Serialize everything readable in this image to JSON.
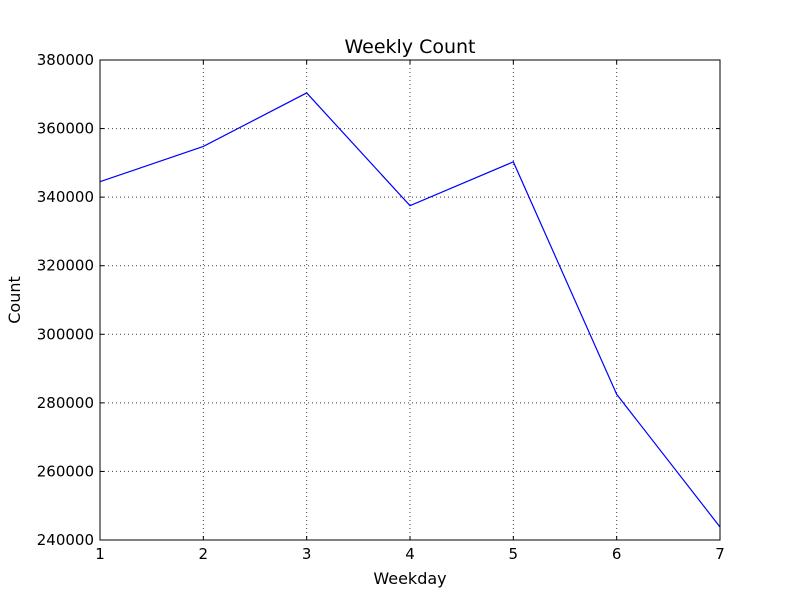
{
  "chart_data": {
    "type": "line",
    "title": "Weekly Count",
    "xlabel": "Weekday",
    "ylabel": "Count",
    "x": [
      1,
      2,
      3,
      4,
      5,
      6,
      7
    ],
    "series": [
      {
        "values": [
          344500,
          354800,
          370400,
          337500,
          350300,
          282500,
          243800
        ],
        "color": "#0000ff"
      }
    ],
    "xlim": [
      1,
      7
    ],
    "ylim": [
      240000,
      380000
    ],
    "xticks": [
      1,
      2,
      3,
      4,
      5,
      6,
      7
    ],
    "yticks": [
      240000,
      260000,
      280000,
      300000,
      320000,
      340000,
      360000,
      380000
    ],
    "xtick_labels": [
      "1",
      "2",
      "3",
      "4",
      "5",
      "6",
      "7"
    ],
    "ytick_labels": [
      "240000",
      "260000",
      "280000",
      "300000",
      "320000",
      "340000",
      "360000",
      "380000"
    ],
    "grid": true,
    "legend": "none"
  }
}
